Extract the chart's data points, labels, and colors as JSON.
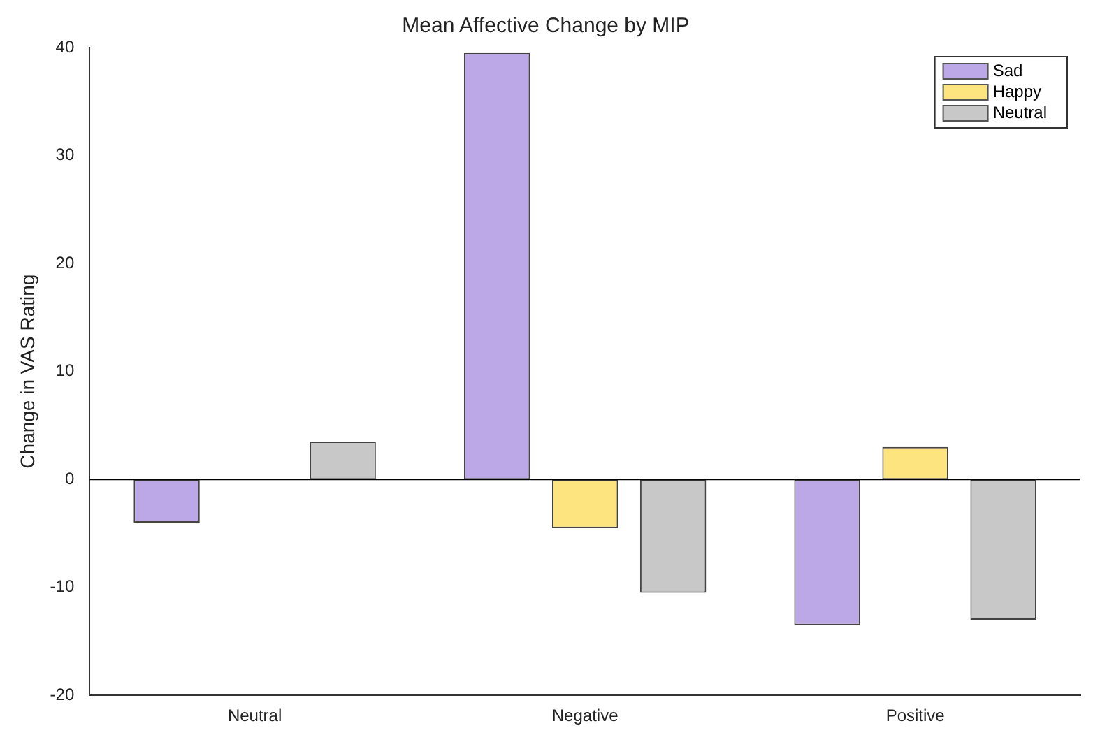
{
  "chart_data": {
    "type": "bar",
    "title": "Mean Affective Change by MIP",
    "ylabel": "Change in VAS Rating",
    "categories": [
      "Neutral",
      "Negative",
      "Positive"
    ],
    "series": [
      {
        "name": "Sad",
        "color": "#bca8e6",
        "values": [
          -4,
          39.5,
          -13.5
        ]
      },
      {
        "name": "Happy",
        "color": "#fde47f",
        "values": [
          0,
          -4.5,
          3
        ]
      },
      {
        "name": "Neutral",
        "color": "#c8c8c8",
        "values": [
          3.5,
          -10.5,
          -13
        ]
      }
    ],
    "ylim": [
      -20,
      40
    ],
    "yticks": [
      -20,
      -10,
      0,
      10,
      20,
      30,
      40
    ],
    "grid": false,
    "legend": "top right",
    "ref_lines": [
      {
        "axis": "y",
        "value": 0,
        "color": "#000000"
      }
    ]
  }
}
